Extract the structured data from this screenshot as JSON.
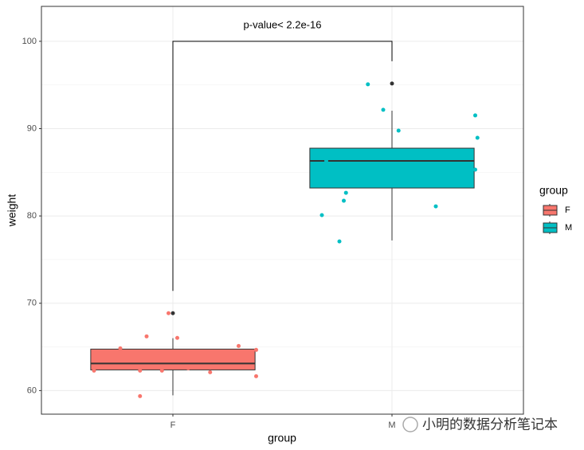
{
  "chart_data": {
    "type": "box",
    "x_label": "group",
    "y_label": "weight",
    "categories": [
      "F",
      "M"
    ],
    "series": [
      {
        "name": "F",
        "color": "#F8766D",
        "q1": 62.37,
        "median": 63.1,
        "q3": 64.75,
        "whisker_low": 59.45,
        "whisker_high": 66.0,
        "outliers": [
          68.86
        ],
        "points": {
          "x": [
            0.64,
            0.76,
            0.88,
            0.85,
            0.98,
            1.02,
            0.95,
            1.17,
            1.3,
            1.38,
            1.38,
            0.85,
            1.07
          ],
          "y": [
            62.28,
            64.84,
            66.21,
            62.28,
            68.86,
            66.03,
            62.28,
            62.1,
            65.11,
            64.66,
            61.64,
            59.36,
            62.56
          ]
        }
      },
      {
        "name": "M",
        "color": "#00BFC4",
        "q1": 83.2,
        "median": 86.3,
        "q3": 87.76,
        "whisker_low": 77.2,
        "whisker_high": 92.05,
        "outliers": [
          95.16
        ],
        "points": {
          "x": [
            1.68,
            1.76,
            1.78,
            1.79,
            1.89,
            1.96,
            2.03,
            2.2,
            2.38,
            2.39,
            2.38,
            1.7
          ],
          "y": [
            80.09,
            77.08,
            81.74,
            82.65,
            95.07,
            92.15,
            89.77,
            81.1,
            91.51,
            88.95,
            85.3,
            86.3
          ]
        }
      }
    ],
    "outlier_color": "#333333",
    "xlim": [
      0.4,
      2.6
    ],
    "ylim": [
      57.3,
      104
    ],
    "yticks": [
      60,
      70,
      80,
      90,
      100
    ],
    "minor_yticks": [
      65,
      75,
      85,
      95
    ],
    "grid": true,
    "legend_title": "group",
    "legend": "right",
    "bracket": {
      "y": 100,
      "label": "p-value< 2.2e-16"
    },
    "watermark": "小明的数据分析笔记本"
  }
}
